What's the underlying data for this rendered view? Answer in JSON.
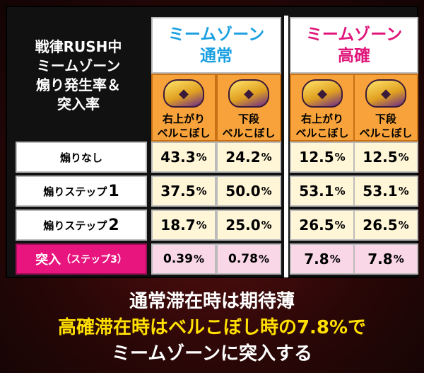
{
  "header": {
    "title_lines": [
      "戦律RUSH中",
      "ミームゾーン",
      "煽り発生率＆",
      "突入率"
    ]
  },
  "zones": {
    "normal": {
      "line1": "ミームゾーン",
      "line2": "通常",
      "color": "#1aa0e0"
    },
    "high": {
      "line1": "ミームゾーン",
      "line2": "高確",
      "color": "#e0157a"
    }
  },
  "columns": [
    {
      "line1": "右上がり",
      "line2": "ベルこぼし",
      "icon": "character-icon"
    },
    {
      "line1": "下段",
      "line2": "ベルこぼし",
      "icon": "character-icon"
    },
    {
      "line1": "右上がり",
      "line2": "ベルこぼし",
      "icon": "character-icon"
    },
    {
      "line1": "下段",
      "line2": "ベルこぼし",
      "icon": "character-icon"
    }
  ],
  "rows": [
    {
      "label": "煽りなし",
      "label_num": "",
      "values": [
        "43.3",
        "24.2",
        "12.5",
        "12.5"
      ]
    },
    {
      "label": "煽りステップ",
      "label_num": "1",
      "values": [
        "37.5",
        "50.0",
        "53.1",
        "53.1"
      ]
    },
    {
      "label": "煽りステップ",
      "label_num": "2",
      "values": [
        "18.7",
        "25.0",
        "26.5",
        "26.5"
      ]
    },
    {
      "label": "突入",
      "label_sub": "（ステップ3）",
      "values": [
        "0.39",
        "0.78",
        "7.8",
        "7.8"
      ]
    }
  ],
  "percent_sign": "%",
  "footer": {
    "line1": "通常滞在時は期待薄",
    "line2": "高確滞在時はベルこぼし時の7.8%で",
    "line3": "ミームゾーンに突入する"
  },
  "colors": {
    "highlight_pink": "#e8157e",
    "header_orange": "#f7a23a",
    "footer_yellow": "#ffe000"
  }
}
